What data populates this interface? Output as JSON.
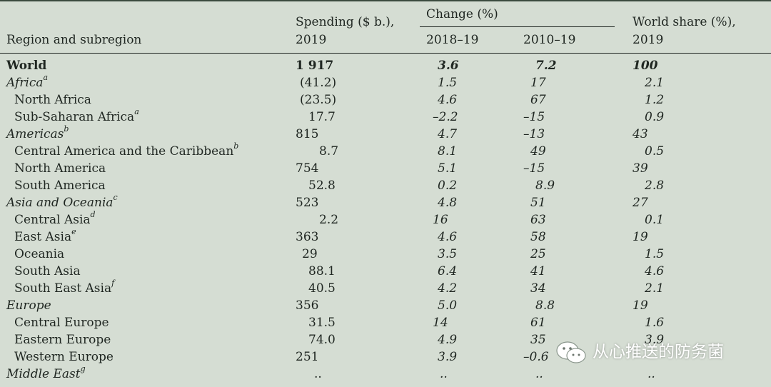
{
  "header": {
    "region_col": "Region and subregion",
    "spending_line1": "Spending ($ b.),",
    "spending_line2": "2019",
    "change_group": "Change (%)",
    "change_col1": "2018–19",
    "change_col2": "2010–19",
    "share_line1": "World share (%),",
    "share_line2": "2019"
  },
  "rows": [
    {
      "label": "World",
      "note": "",
      "spending": "1 917",
      "change_2018_19": "3.6",
      "change_2010_19": "7.2",
      "share": "100"
    },
    {
      "label": "Africa",
      "note": "a",
      "spending": "(41.2)",
      "change_2018_19": "1.5",
      "change_2010_19": "17",
      "share": "2.1"
    },
    {
      "label": "North Africa",
      "note": "",
      "spending": "(23.5)",
      "change_2018_19": "4.6",
      "change_2010_19": "67",
      "share": "1.2"
    },
    {
      "label": "Sub-Saharan Africa",
      "note": "a",
      "spending": "17.7",
      "change_2018_19": "–2.2",
      "change_2010_19": "–15",
      "share": "0.9"
    },
    {
      "label": "Americas",
      "note": "b",
      "spending": "815",
      "change_2018_19": "4.7",
      "change_2010_19": "–13",
      "share": "43"
    },
    {
      "label": "Central America and the Caribbean",
      "note": "b",
      "spending": "8.7",
      "change_2018_19": "8.1",
      "change_2010_19": "49",
      "share": "0.5"
    },
    {
      "label": "North America",
      "note": "",
      "spending": "754",
      "change_2018_19": "5.1",
      "change_2010_19": "–15",
      "share": "39"
    },
    {
      "label": "South America",
      "note": "",
      "spending": "52.8",
      "change_2018_19": "0.2",
      "change_2010_19": "8.9",
      "share": "2.8"
    },
    {
      "label": "Asia and Oceania",
      "note": "c",
      "spending": "523",
      "change_2018_19": "4.8",
      "change_2010_19": "51",
      "share": "27"
    },
    {
      "label": "Central Asia",
      "note": "d",
      "spending": "2.2",
      "change_2018_19": "16",
      "change_2010_19": "63",
      "share": "0.1"
    },
    {
      "label": "East Asia",
      "note": "e",
      "spending": "363",
      "change_2018_19": "4.6",
      "change_2010_19": "58",
      "share": "19"
    },
    {
      "label": "Oceania",
      "note": "",
      "spending": "29",
      "change_2018_19": "3.5",
      "change_2010_19": "25",
      "share": "1.5"
    },
    {
      "label": "South Asia",
      "note": "",
      "spending": "88.1",
      "change_2018_19": "6.4",
      "change_2010_19": "41",
      "share": "4.6"
    },
    {
      "label": "South East Asia",
      "note": "f",
      "spending": "40.5",
      "change_2018_19": "4.2",
      "change_2010_19": "34",
      "share": "2.1"
    },
    {
      "label": "Europe",
      "note": "",
      "spending": "356",
      "change_2018_19": "5.0",
      "change_2010_19": "8.8",
      "share": "19"
    },
    {
      "label": "Central Europe",
      "note": "",
      "spending": "31.5",
      "change_2018_19": "14",
      "change_2010_19": "61",
      "share": "1.6"
    },
    {
      "label": "Eastern Europe",
      "note": "",
      "spending": "74.0",
      "change_2018_19": "4.9",
      "change_2010_19": "35",
      "share": "3.9"
    },
    {
      "label": "Western Europe",
      "note": "",
      "spending": "251",
      "change_2018_19": "3.9",
      "change_2010_19": "–0.6",
      "share": ""
    },
    {
      "label": "Middle East",
      "note": "g",
      "spending": "..",
      "change_2018_19": "..",
      "change_2010_19": "..",
      "share": ".."
    }
  ],
  "watermark": {
    "text": "从心推送的防务菌",
    "icon": "wechat-icon"
  }
}
